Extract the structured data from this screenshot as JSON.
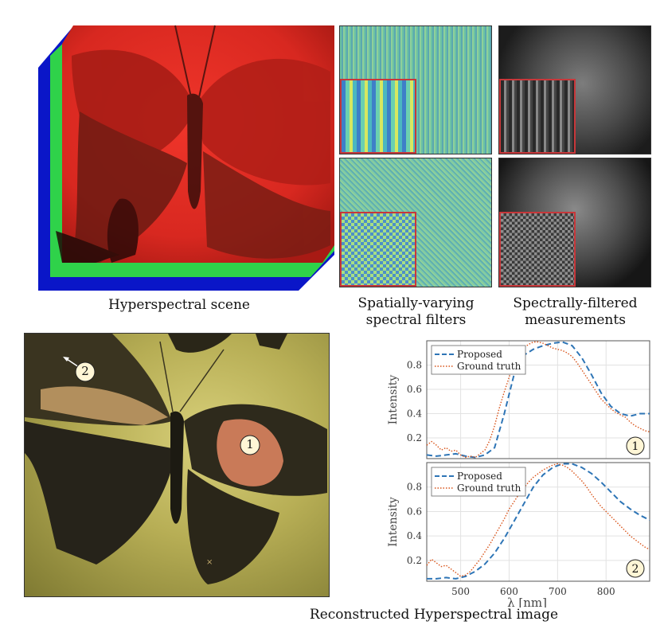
{
  "captions": {
    "scene": "Hyperspectral scene",
    "filters": "Spatially-varying spectral filters",
    "measurements": "Spectrally-filtered measurements",
    "reconstructed": "Reconstructed Hyperspectral image"
  },
  "markers": {
    "point1": "1",
    "point2": "2"
  },
  "colors": {
    "proposed": "#2e75b6",
    "ground_truth": "#d9541a",
    "inset_border": "#c8373a"
  },
  "chart_data": [
    {
      "type": "line",
      "title": "",
      "xlabel": "λ [nm]",
      "ylabel": "Intensity",
      "xlim": [
        430,
        890
      ],
      "ylim": [
        0.03,
        1.0
      ],
      "yticks": [
        0.2,
        0.4,
        0.6,
        0.8
      ],
      "xticks": [],
      "grid": true,
      "legend_position": "top-left",
      "badge": "1",
      "series": [
        {
          "name": "Proposed",
          "style": "dashed",
          "x": [
            430,
            450,
            470,
            490,
            510,
            530,
            550,
            570,
            590,
            610,
            630,
            650,
            670,
            690,
            710,
            730,
            750,
            770,
            790,
            810,
            830,
            850,
            870,
            890
          ],
          "y": [
            0.06,
            0.05,
            0.06,
            0.07,
            0.05,
            0.04,
            0.06,
            0.12,
            0.4,
            0.72,
            0.88,
            0.93,
            0.96,
            0.98,
            0.99,
            0.96,
            0.86,
            0.72,
            0.57,
            0.46,
            0.4,
            0.38,
            0.4,
            0.4
          ]
        },
        {
          "name": "Ground truth",
          "style": "dotted",
          "x": [
            430,
            440,
            450,
            460,
            470,
            480,
            490,
            500,
            510,
            520,
            530,
            540,
            550,
            560,
            570,
            580,
            590,
            600,
            610,
            620,
            630,
            640,
            650,
            660,
            670,
            680,
            690,
            700,
            710,
            720,
            730,
            740,
            750,
            760,
            770,
            780,
            790,
            800,
            810,
            820,
            830,
            840,
            850,
            860,
            870,
            880,
            890
          ],
          "y": [
            0.14,
            0.17,
            0.14,
            0.1,
            0.12,
            0.09,
            0.1,
            0.06,
            0.04,
            0.05,
            0.04,
            0.07,
            0.1,
            0.18,
            0.3,
            0.45,
            0.58,
            0.7,
            0.82,
            0.9,
            0.94,
            0.97,
            0.99,
            0.99,
            0.98,
            0.96,
            0.94,
            0.93,
            0.92,
            0.9,
            0.87,
            0.82,
            0.76,
            0.7,
            0.64,
            0.58,
            0.52,
            0.48,
            0.44,
            0.41,
            0.39,
            0.37,
            0.33,
            0.3,
            0.28,
            0.26,
            0.25
          ]
        }
      ]
    },
    {
      "type": "line",
      "title": "",
      "xlabel": "λ [nm]",
      "ylabel": "Intensity",
      "xlim": [
        430,
        890
      ],
      "ylim": [
        0.03,
        1.0
      ],
      "yticks": [
        0.2,
        0.4,
        0.6,
        0.8
      ],
      "xticks": [
        500,
        600,
        700,
        800
      ],
      "grid": true,
      "legend_position": "top-left",
      "badge": "2",
      "series": [
        {
          "name": "Proposed",
          "style": "dashed",
          "x": [
            430,
            450,
            470,
            490,
            510,
            530,
            550,
            570,
            590,
            610,
            630,
            650,
            670,
            690,
            710,
            730,
            750,
            770,
            790,
            810,
            830,
            850,
            870,
            890
          ],
          "y": [
            0.05,
            0.05,
            0.06,
            0.05,
            0.07,
            0.11,
            0.17,
            0.26,
            0.38,
            0.52,
            0.66,
            0.8,
            0.9,
            0.96,
            0.99,
            0.99,
            0.96,
            0.91,
            0.84,
            0.76,
            0.68,
            0.62,
            0.57,
            0.53
          ]
        },
        {
          "name": "Ground truth",
          "style": "dotted",
          "x": [
            430,
            440,
            450,
            460,
            470,
            480,
            490,
            500,
            510,
            520,
            530,
            540,
            550,
            560,
            570,
            580,
            590,
            600,
            610,
            620,
            630,
            640,
            650,
            660,
            670,
            680,
            690,
            700,
            710,
            720,
            730,
            740,
            750,
            760,
            770,
            780,
            790,
            800,
            810,
            820,
            830,
            840,
            850,
            860,
            870,
            880,
            890
          ],
          "y": [
            0.16,
            0.21,
            0.18,
            0.15,
            0.16,
            0.13,
            0.1,
            0.07,
            0.08,
            0.11,
            0.16,
            0.21,
            0.27,
            0.33,
            0.4,
            0.47,
            0.54,
            0.62,
            0.68,
            0.74,
            0.79,
            0.84,
            0.88,
            0.91,
            0.94,
            0.96,
            0.98,
            0.99,
            0.98,
            0.96,
            0.93,
            0.89,
            0.85,
            0.8,
            0.74,
            0.69,
            0.64,
            0.6,
            0.56,
            0.52,
            0.48,
            0.44,
            0.4,
            0.37,
            0.34,
            0.31,
            0.29
          ]
        }
      ]
    }
  ]
}
